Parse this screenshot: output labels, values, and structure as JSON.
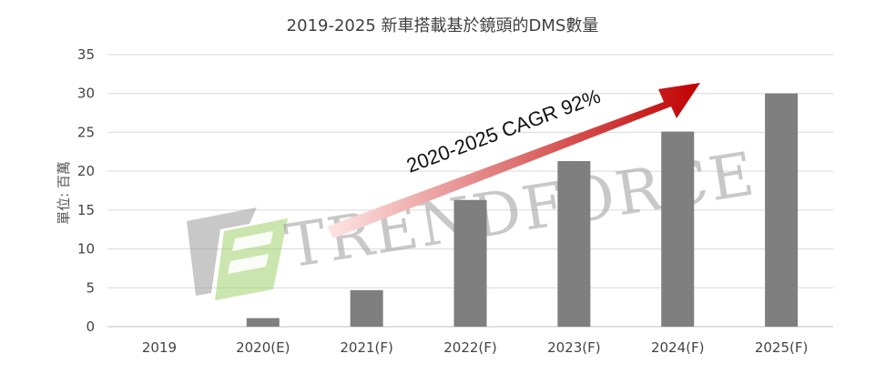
{
  "chart_data": {
    "type": "bar",
    "title": "2019-2025 新車搭載基於鏡頭的DMS數量",
    "ylabel": "單位: 百萬",
    "xlabel": "",
    "categories": [
      "2019",
      "2020(E)",
      "2021(F)",
      "2022(F)",
      "2023(F)",
      "2024(F)",
      "2025(F)"
    ],
    "values": [
      0,
      1.1,
      4.7,
      16.3,
      21.3,
      25.1,
      30
    ],
    "ylim": [
      0,
      35
    ],
    "yticks": [
      "0",
      "5",
      "10",
      "15",
      "20",
      "25",
      "30",
      "35"
    ],
    "grid": true,
    "bar_color": "#7f7f7f",
    "annotation": {
      "text": "2020-2025 CAGR 92%",
      "arrow_gradient": [
        "#fde5e5",
        "#c00000"
      ]
    }
  },
  "watermark": {
    "text": "TRENDFORCE",
    "logo_colors": [
      "#9a9a9a",
      "#9ed26b"
    ]
  }
}
